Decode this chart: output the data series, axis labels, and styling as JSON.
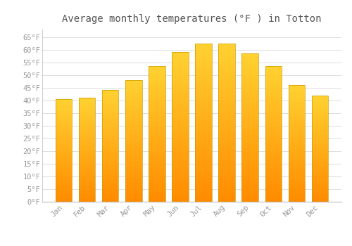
{
  "title": "Average monthly temperatures (°F ) in Totton",
  "months": [
    "Jan",
    "Feb",
    "Mar",
    "Apr",
    "May",
    "Jun",
    "Jul",
    "Aug",
    "Sep",
    "Oct",
    "Nov",
    "Dec"
  ],
  "values": [
    40.5,
    41.0,
    44.0,
    48.0,
    53.5,
    59.0,
    62.5,
    62.5,
    58.5,
    53.5,
    46.0,
    42.0
  ],
  "bar_color_top": "#FFCC44",
  "bar_color_mid": "#FFAA22",
  "bar_color_bottom": "#FF8C00",
  "bar_border_color": "#CC8800",
  "background_color": "#FFFFFF",
  "grid_color": "#DDDDDD",
  "text_color": "#999999",
  "ylim": [
    0,
    68
  ],
  "yticks": [
    0,
    5,
    10,
    15,
    20,
    25,
    30,
    35,
    40,
    45,
    50,
    55,
    60,
    65
  ],
  "title_fontsize": 10,
  "tick_fontsize": 7.5,
  "bar_width": 0.7
}
